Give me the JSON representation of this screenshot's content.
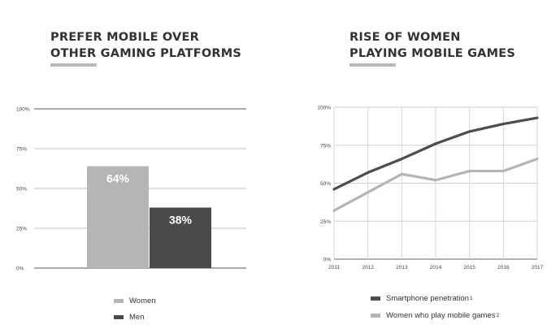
{
  "left_panel": {
    "title_line1": "PREFER MOBILE OVER",
    "title_line2": "OTHER GAMING PLATFORMS"
  },
  "right_panel": {
    "title_line1": "RISE OF WOMEN",
    "title_line2": "PLAYING MOBILE GAMES"
  },
  "colors": {
    "women": "#b5b5b5",
    "men": "#4a4a4a",
    "smartphone": "#4d4d4d",
    "women_mobile": "#b5b5b5",
    "grid": "#c9bcc4",
    "title_bar": "#b9b9b9"
  },
  "chart_data": [
    {
      "type": "bar",
      "title": "PREFER MOBILE OVER OTHER GAMING PLATFORMS",
      "categories": [
        "Women",
        "Men"
      ],
      "values": [
        64,
        38
      ],
      "data_labels": [
        "64%",
        "38%"
      ],
      "ylim": [
        0,
        100
      ],
      "yticks": [
        "0%",
        "25%",
        "50%",
        "75%",
        "100%"
      ],
      "grid": true,
      "legend": [
        "Women",
        "Men"
      ],
      "legend_placement": "bottom"
    },
    {
      "type": "line",
      "title": "RISE OF WOMEN PLAYING MOBILE GAMES",
      "x": [
        2011,
        2012,
        2013,
        2014,
        2015,
        2016,
        2017
      ],
      "series": [
        {
          "name": "Smartphone penetration",
          "note": "1",
          "values": [
            46,
            57,
            66,
            76,
            84,
            89,
            93
          ]
        },
        {
          "name": "Women who play mobile games",
          "note": "2",
          "values": [
            32,
            44,
            56,
            52,
            58,
            58,
            66
          ]
        }
      ],
      "ylim": [
        0,
        100
      ],
      "yticks": [
        "0%",
        "25%",
        "50%",
        "75%",
        "100%"
      ],
      "grid": true,
      "legend_placement": "bottom"
    }
  ]
}
